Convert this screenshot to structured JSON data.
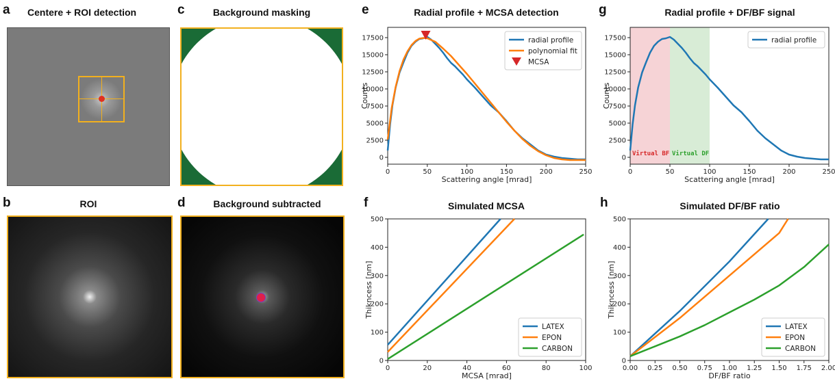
{
  "panels": {
    "a": {
      "letter": "a",
      "title": "Centere + ROI detection"
    },
    "b": {
      "letter": "b",
      "title": "ROI"
    },
    "c": {
      "letter": "c",
      "title": "Background masking"
    },
    "d": {
      "letter": "d",
      "title": "Background subtracted"
    },
    "e": {
      "letter": "e",
      "title": "Radial profile + MCSA detection"
    },
    "f": {
      "letter": "f",
      "title": "Simulated MCSA"
    },
    "g": {
      "letter": "g",
      "title": "Radial profile + DF/BF signal"
    },
    "h": {
      "letter": "h",
      "title": "Simulated DF/BF ratio"
    }
  },
  "colors": {
    "roi_box": "#f2b01e",
    "mask_corner": "#1a6b36",
    "blue": "#1f77b4",
    "orange": "#ff7f0e",
    "green": "#2ca02c",
    "marker": "#d62728",
    "bf_region": "#f6d3d6",
    "df_region": "#d8ecd6"
  },
  "chart_data": [
    {
      "id": "e",
      "type": "line",
      "title": "Radial profile + MCSA detection",
      "xlabel": "Scattering angle [mrad]",
      "ylabel": "Counts",
      "xlim": [
        0,
        250
      ],
      "ylim": [
        -1000,
        19000
      ],
      "xticks": [
        0,
        50,
        100,
        150,
        200,
        250
      ],
      "yticks": [
        0,
        2500,
        5000,
        7500,
        10000,
        12500,
        15000,
        17500
      ],
      "legend_position": "top-right",
      "series": [
        {
          "name": "radial profile",
          "color": "#1f77b4",
          "x": [
            0,
            3,
            6,
            10,
            15,
            20,
            25,
            30,
            35,
            40,
            45,
            50,
            55,
            60,
            65,
            70,
            75,
            80,
            85,
            90,
            95,
            100,
            110,
            120,
            130,
            140,
            150,
            160,
            170,
            180,
            190,
            200,
            210,
            220,
            230,
            240,
            250
          ],
          "y": [
            1000,
            4800,
            7600,
            10200,
            12400,
            13900,
            15300,
            16300,
            16900,
            17300,
            17400,
            17600,
            17200,
            16600,
            16000,
            15300,
            14500,
            13800,
            13300,
            12700,
            12100,
            11400,
            10200,
            8900,
            7600,
            6600,
            5300,
            3900,
            2800,
            1900,
            1000,
            400,
            100,
            -100,
            -200,
            -300,
            -300
          ]
        },
        {
          "name": "polynomial fit",
          "color": "#ff7f0e",
          "x": [
            0,
            5,
            10,
            15,
            20,
            25,
            30,
            35,
            40,
            45,
            50,
            60,
            70,
            80,
            90,
            100,
            110,
            120,
            130,
            140,
            150,
            160,
            170,
            180,
            190,
            200,
            210,
            220,
            230,
            240,
            250
          ],
          "y": [
            2600,
            7200,
            10300,
            12600,
            14300,
            15500,
            16400,
            17000,
            17350,
            17450,
            17400,
            16900,
            15900,
            14800,
            13500,
            12200,
            10800,
            9400,
            8000,
            6600,
            5200,
            3900,
            2700,
            1700,
            900,
            300,
            -100,
            -300,
            -400,
            -400,
            -400
          ]
        }
      ],
      "markers": [
        {
          "name": "MCSA",
          "x": 48,
          "y": 17800,
          "color": "#d62728"
        }
      ]
    },
    {
      "id": "f",
      "type": "line",
      "title": "Simulated MCSA",
      "xlabel": "MCSA [mrad]",
      "ylabel": "Thikncess [nm]",
      "xlim": [
        0,
        100
      ],
      "ylim": [
        0,
        500
      ],
      "xticks": [
        0,
        20,
        40,
        60,
        80,
        100
      ],
      "yticks": [
        0,
        100,
        200,
        300,
        400,
        500
      ],
      "legend_position": "bottom-right",
      "series": [
        {
          "name": "LATEX",
          "color": "#1f77b4",
          "x": [
            0,
            57
          ],
          "y": [
            55,
            500
          ]
        },
        {
          "name": "EPON",
          "color": "#ff7f0e",
          "x": [
            0,
            64
          ],
          "y": [
            30,
            500
          ]
        },
        {
          "name": "CARBON",
          "color": "#2ca02c",
          "x": [
            0,
            99
          ],
          "y": [
            5,
            445
          ]
        }
      ]
    },
    {
      "id": "g",
      "type": "line",
      "title": "Radial profile + DF/BF signal",
      "xlabel": "Scattering angle [mrad]",
      "ylabel": "Counts",
      "xlim": [
        0,
        250
      ],
      "ylim": [
        -1000,
        19000
      ],
      "xticks": [
        0,
        50,
        100,
        150,
        200,
        250
      ],
      "yticks": [
        0,
        2500,
        5000,
        7500,
        10000,
        12500,
        15000,
        17500
      ],
      "legend_position": "top-right",
      "regions": [
        {
          "label": "Virtual BF",
          "x0": 0,
          "x1": 50,
          "color": "#f6d3d6",
          "text_color": "#d62728"
        },
        {
          "label": "Virtual DF",
          "x0": 50,
          "x1": 100,
          "color": "#d8ecd6",
          "text_color": "#2ca02c"
        }
      ],
      "series": [
        {
          "name": "radial profile",
          "color": "#1f77b4",
          "x": [
            0,
            3,
            6,
            10,
            15,
            20,
            25,
            30,
            35,
            40,
            45,
            50,
            55,
            60,
            65,
            70,
            75,
            80,
            85,
            90,
            95,
            100,
            110,
            120,
            130,
            140,
            150,
            160,
            170,
            180,
            190,
            200,
            210,
            220,
            230,
            240,
            250
          ],
          "y": [
            1000,
            4800,
            7600,
            10200,
            12400,
            13900,
            15300,
            16300,
            16900,
            17300,
            17400,
            17600,
            17200,
            16600,
            16000,
            15300,
            14500,
            13800,
            13300,
            12700,
            12100,
            11400,
            10200,
            8900,
            7600,
            6600,
            5300,
            3900,
            2800,
            1900,
            1000,
            400,
            100,
            -100,
            -200,
            -300,
            -300
          ]
        }
      ]
    },
    {
      "id": "h",
      "type": "line",
      "title": "Simulated DF/BF ratio",
      "xlabel": "DF/BF ratio",
      "ylabel": "Thikncess [nm]",
      "xlim": [
        0,
        2
      ],
      "ylim": [
        0,
        500
      ],
      "xticks": [
        0,
        0.25,
        0.5,
        0.75,
        1,
        1.25,
        1.5,
        1.75,
        2
      ],
      "xtick_labels": [
        "0.00",
        "0.25",
        "0.50",
        "0.75",
        "1.00",
        "1.25",
        "1.50",
        "1.75",
        "2.00"
      ],
      "yticks": [
        0,
        100,
        200,
        300,
        400,
        500
      ],
      "legend_position": "bottom-right",
      "series": [
        {
          "name": "LATEX",
          "color": "#1f77b4",
          "x": [
            0,
            0.5,
            1.0,
            1.39
          ],
          "y": [
            15,
            175,
            350,
            500
          ]
        },
        {
          "name": "EPON",
          "color": "#ff7f0e",
          "x": [
            0,
            0.5,
            1.0,
            1.5,
            1.59
          ],
          "y": [
            15,
            150,
            300,
            450,
            500
          ]
        },
        {
          "name": "CARBON",
          "color": "#2ca02c",
          "x": [
            0,
            0.25,
            0.5,
            0.75,
            1.0,
            1.25,
            1.5,
            1.75,
            2.0
          ],
          "y": [
            15,
            50,
            85,
            125,
            170,
            215,
            265,
            330,
            410
          ]
        }
      ]
    }
  ]
}
